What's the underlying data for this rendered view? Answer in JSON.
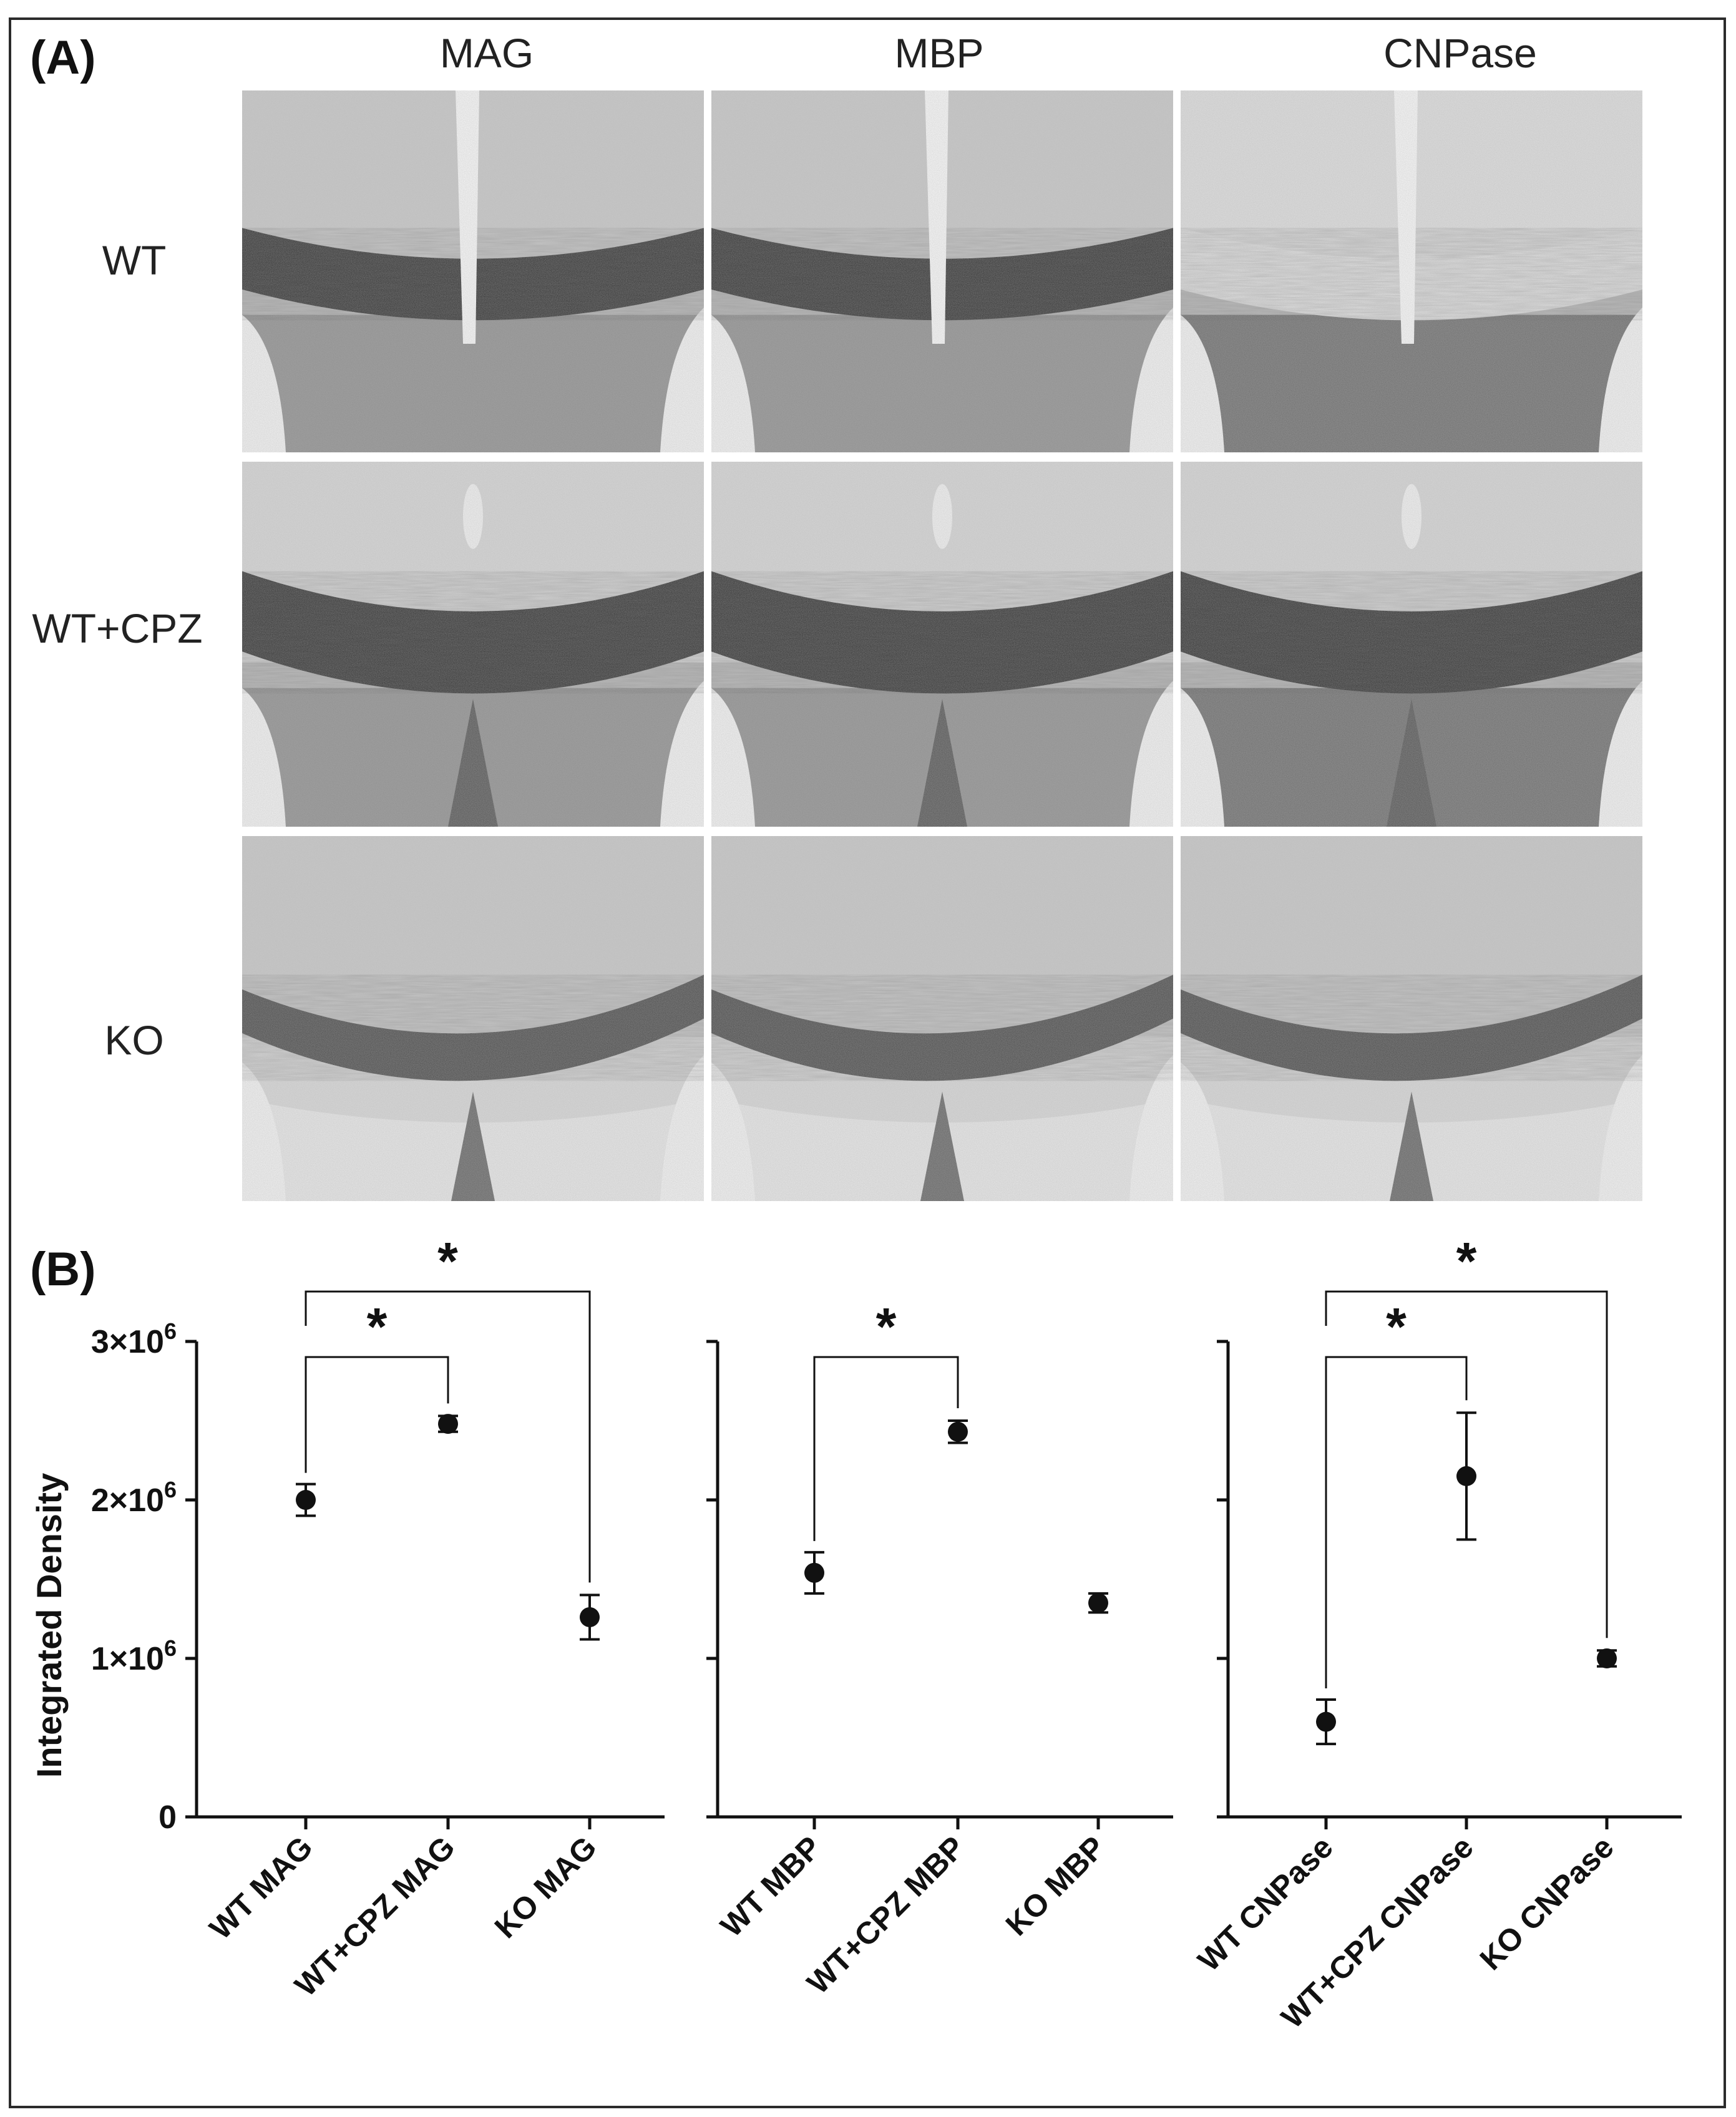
{
  "panel_a": {
    "letter": "(A)",
    "columns": [
      "MAG",
      "MBP",
      "CNPase"
    ],
    "rows": [
      "WT",
      "WT+CPZ",
      "KO"
    ]
  },
  "panel_b": {
    "letter": "(B)",
    "ylabel": "Integrated Density",
    "yticks": [
      {
        "value": 0,
        "base": "0",
        "exp": ""
      },
      {
        "value": 1000000,
        "base": "1×10",
        "exp": "6"
      },
      {
        "value": 2000000,
        "base": "2×10",
        "exp": "6"
      },
      {
        "value": 3000000,
        "base": "3×10",
        "exp": "6"
      }
    ],
    "significance_marker": "*"
  },
  "chart_data": [
    {
      "type": "scatter",
      "categories": [
        "WT MAG",
        "WT+CPZ MAG",
        "KO MAG"
      ],
      "values": [
        2000000,
        2480000,
        1260000
      ],
      "errors": [
        100000,
        50000,
        140000
      ],
      "ylabel": "Integrated Density",
      "ylim": [
        0,
        3000000
      ],
      "significance": [
        {
          "from": 0,
          "to": 1,
          "label": "*",
          "level": 1
        },
        {
          "from": 0,
          "to": 2,
          "label": "*",
          "level": 2
        }
      ]
    },
    {
      "type": "scatter",
      "categories": [
        "WT MBP",
        "WT+CPZ MBP",
        "KO MBP"
      ],
      "values": [
        1540000,
        2430000,
        1350000
      ],
      "errors": [
        130000,
        70000,
        60000
      ],
      "ylim": [
        0,
        3000000
      ],
      "significance": [
        {
          "from": 0,
          "to": 1,
          "label": "*",
          "level": 1
        }
      ]
    },
    {
      "type": "scatter",
      "categories": [
        "WT CNPase",
        "WT+CPZ CNPase",
        "KO CNPase"
      ],
      "values": [
        600000,
        2150000,
        1000000
      ],
      "errors": [
        140000,
        400000,
        50000
      ],
      "ylim": [
        0,
        3000000
      ],
      "significance": [
        {
          "from": 0,
          "to": 1,
          "label": "*",
          "level": 1
        },
        {
          "from": 0,
          "to": 2,
          "label": "*",
          "level": 2
        }
      ]
    }
  ]
}
